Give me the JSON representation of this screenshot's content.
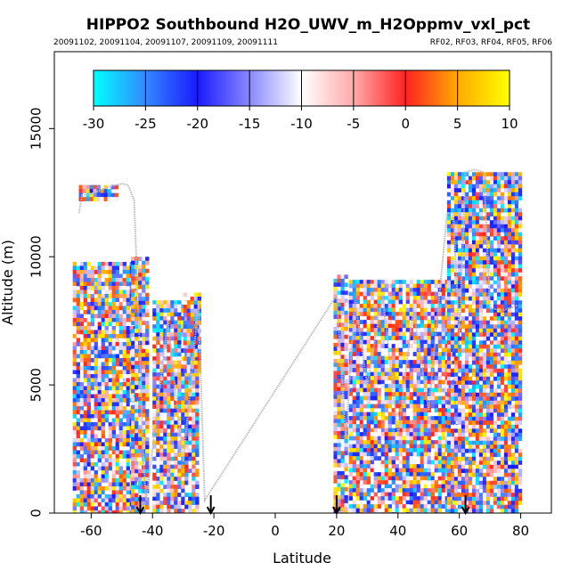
{
  "chart_data": {
    "type": "heatmap",
    "title": "HIPPO2 Southbound H2O_UWV_m_H2Oppmv_vxl_pct",
    "subtitle_left": "20091102, 20091104, 20091107, 20091109, 20091111",
    "subtitle_right": "RF02, RF03, RF04, RF05, RF06",
    "xlabel": "Latitude",
    "ylabel": "Altitude (m)",
    "xlim": [
      -72,
      90
    ],
    "ylim": [
      0,
      18000
    ],
    "x_ticks": [
      -60,
      -40,
      -20,
      0,
      20,
      40,
      60,
      80
    ],
    "x_tick_labels": [
      "-60",
      "-40",
      "-20",
      "0",
      "20",
      "40",
      "60",
      "80"
    ],
    "y_ticks": [
      0,
      5000,
      10000,
      15000
    ],
    "y_tick_labels": [
      "0",
      "5000",
      "10000",
      "15000"
    ],
    "colorbar": {
      "range": [
        -30,
        10
      ],
      "ticks": [
        -30,
        -25,
        -20,
        -15,
        -10,
        -5,
        0,
        5,
        10
      ],
      "tick_labels": [
        "-30",
        "-25",
        "-20",
        "-15",
        "-10",
        "-5",
        "0",
        "5",
        "10"
      ],
      "colors": [
        "#00ffff",
        "#3388ff",
        "#1a1aff",
        "#8888ff",
        "#ffffff",
        "#ffaaaa",
        "#ff2222",
        "#ffaa00",
        "#ffff00"
      ]
    },
    "arrows_latitude": [
      -44,
      -21,
      20,
      62
    ],
    "flight_track_lat_alt": [
      [
        -64,
        11700
      ],
      [
        -63,
        12400
      ],
      [
        -60,
        12450
      ],
      [
        -55,
        12700
      ],
      [
        -50,
        12850
      ],
      [
        -48,
        12800
      ],
      [
        -46,
        12200
      ],
      [
        -45,
        9000
      ],
      [
        -44,
        6000
      ],
      [
        -43,
        2000
      ],
      [
        -42,
        500
      ],
      [
        -35,
        7500
      ],
      [
        -30,
        2000
      ],
      [
        -25,
        8200
      ],
      [
        -23,
        500
      ],
      [
        20,
        8500
      ],
      [
        23,
        3000
      ],
      [
        26,
        8300
      ],
      [
        30,
        5000
      ],
      [
        35,
        8500
      ],
      [
        40,
        3000
      ],
      [
        45,
        8000
      ],
      [
        50,
        4000
      ],
      [
        56,
        11700
      ],
      [
        58,
        11700
      ],
      [
        60,
        7000
      ],
      [
        62,
        13300
      ],
      [
        65,
        13400
      ],
      [
        68,
        13300
      ],
      [
        70,
        8000
      ],
      [
        74,
        7900
      ],
      [
        79,
        8100
      ]
    ],
    "segments": [
      {
        "lat": [
          -66,
          -46
        ],
        "alt": [
          0,
          9800
        ]
      },
      {
        "lat": [
          -64,
          -52
        ],
        "alt": [
          12200,
          12800
        ]
      },
      {
        "lat": [
          -47,
          -42
        ],
        "alt": [
          0,
          10000
        ]
      },
      {
        "lat": [
          -40,
          -25
        ],
        "alt": [
          0,
          8300
        ]
      },
      {
        "lat": [
          -30,
          -25
        ],
        "alt": [
          5600,
          8600
        ]
      },
      {
        "lat": [
          19,
          23
        ],
        "alt": [
          0,
          9300
        ]
      },
      {
        "lat": [
          24,
          59
        ],
        "alt": [
          0,
          9100
        ]
      },
      {
        "lat": [
          56,
          80
        ],
        "alt": [
          0,
          13300
        ]
      }
    ]
  }
}
